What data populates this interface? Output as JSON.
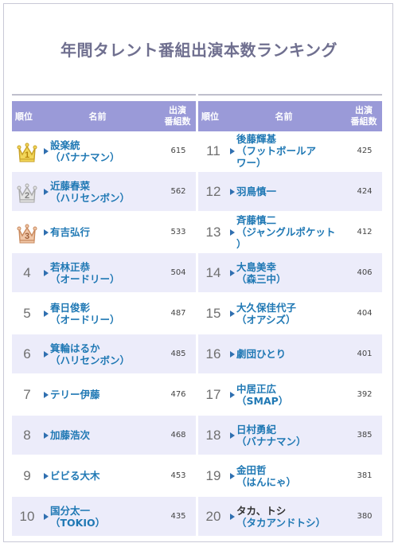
{
  "title": "年間タレント番組出演本数ランキング",
  "header": {
    "rank": "順位",
    "name": "名前",
    "count_line1": "出演",
    "count_line2": "番組数"
  },
  "colors": {
    "header_bg": "#9a9ad8",
    "stripe": "#ececfa",
    "link": "#1f78b4",
    "title": "#6f6f8f"
  },
  "left": [
    {
      "rank": "1",
      "medal": "gold",
      "name": "設楽統",
      "sub": "（バナナマン）",
      "count": "615"
    },
    {
      "rank": "2",
      "medal": "silver",
      "name": "近藤春菜",
      "sub": "（ハリセンボン）",
      "count": "562"
    },
    {
      "rank": "3",
      "medal": "bronze",
      "name": "有吉弘行",
      "sub": "",
      "count": "533"
    },
    {
      "rank": "4",
      "name": "若林正恭",
      "sub": "（オードリー）",
      "count": "504"
    },
    {
      "rank": "5",
      "name": "春日俊彰",
      "sub": "（オードリー）",
      "count": "487"
    },
    {
      "rank": "6",
      "name": "箕輪はるか",
      "sub": "（ハリセンボン）",
      "count": "485"
    },
    {
      "rank": "7",
      "name": "テリー伊藤",
      "sub": "",
      "count": "476"
    },
    {
      "rank": "8",
      "name": "加藤浩次",
      "sub": "",
      "count": "468"
    },
    {
      "rank": "9",
      "name": "ビビる大木",
      "sub": "",
      "count": "453"
    },
    {
      "rank": "10",
      "name": "国分太一",
      "sub": "（TOKIO）",
      "count": "435"
    }
  ],
  "right": [
    {
      "rank": "11",
      "name": "後藤輝基",
      "sub": "（フットボールア",
      "sub2": "ワー）",
      "count": "425"
    },
    {
      "rank": "12",
      "name": "羽鳥慎一",
      "sub": "",
      "count": "424"
    },
    {
      "rank": "13",
      "name": "斉藤慎二",
      "sub": "（ジャングルポケット",
      "sub2": "）",
      "count": "412"
    },
    {
      "rank": "14",
      "name": "大島美幸",
      "sub": "（森三中）",
      "count": "406"
    },
    {
      "rank": "15",
      "name": "大久保佳代子",
      "sub": "（オアシズ）",
      "count": "404"
    },
    {
      "rank": "16",
      "name": "劇団ひとり",
      "sub": "",
      "count": "401"
    },
    {
      "rank": "17",
      "name": "中居正広",
      "sub": "（SMAP）",
      "count": "392"
    },
    {
      "rank": "18",
      "name": "日村勇紀",
      "sub": "（バナナマン）",
      "count": "385"
    },
    {
      "rank": "19",
      "name": "金田哲",
      "sub": "（はんにゃ）",
      "count": "381"
    },
    {
      "rank": "20",
      "name": "タカ、トシ",
      "sub": "（タカアンドトシ）",
      "count": "380",
      "plain": true
    }
  ]
}
